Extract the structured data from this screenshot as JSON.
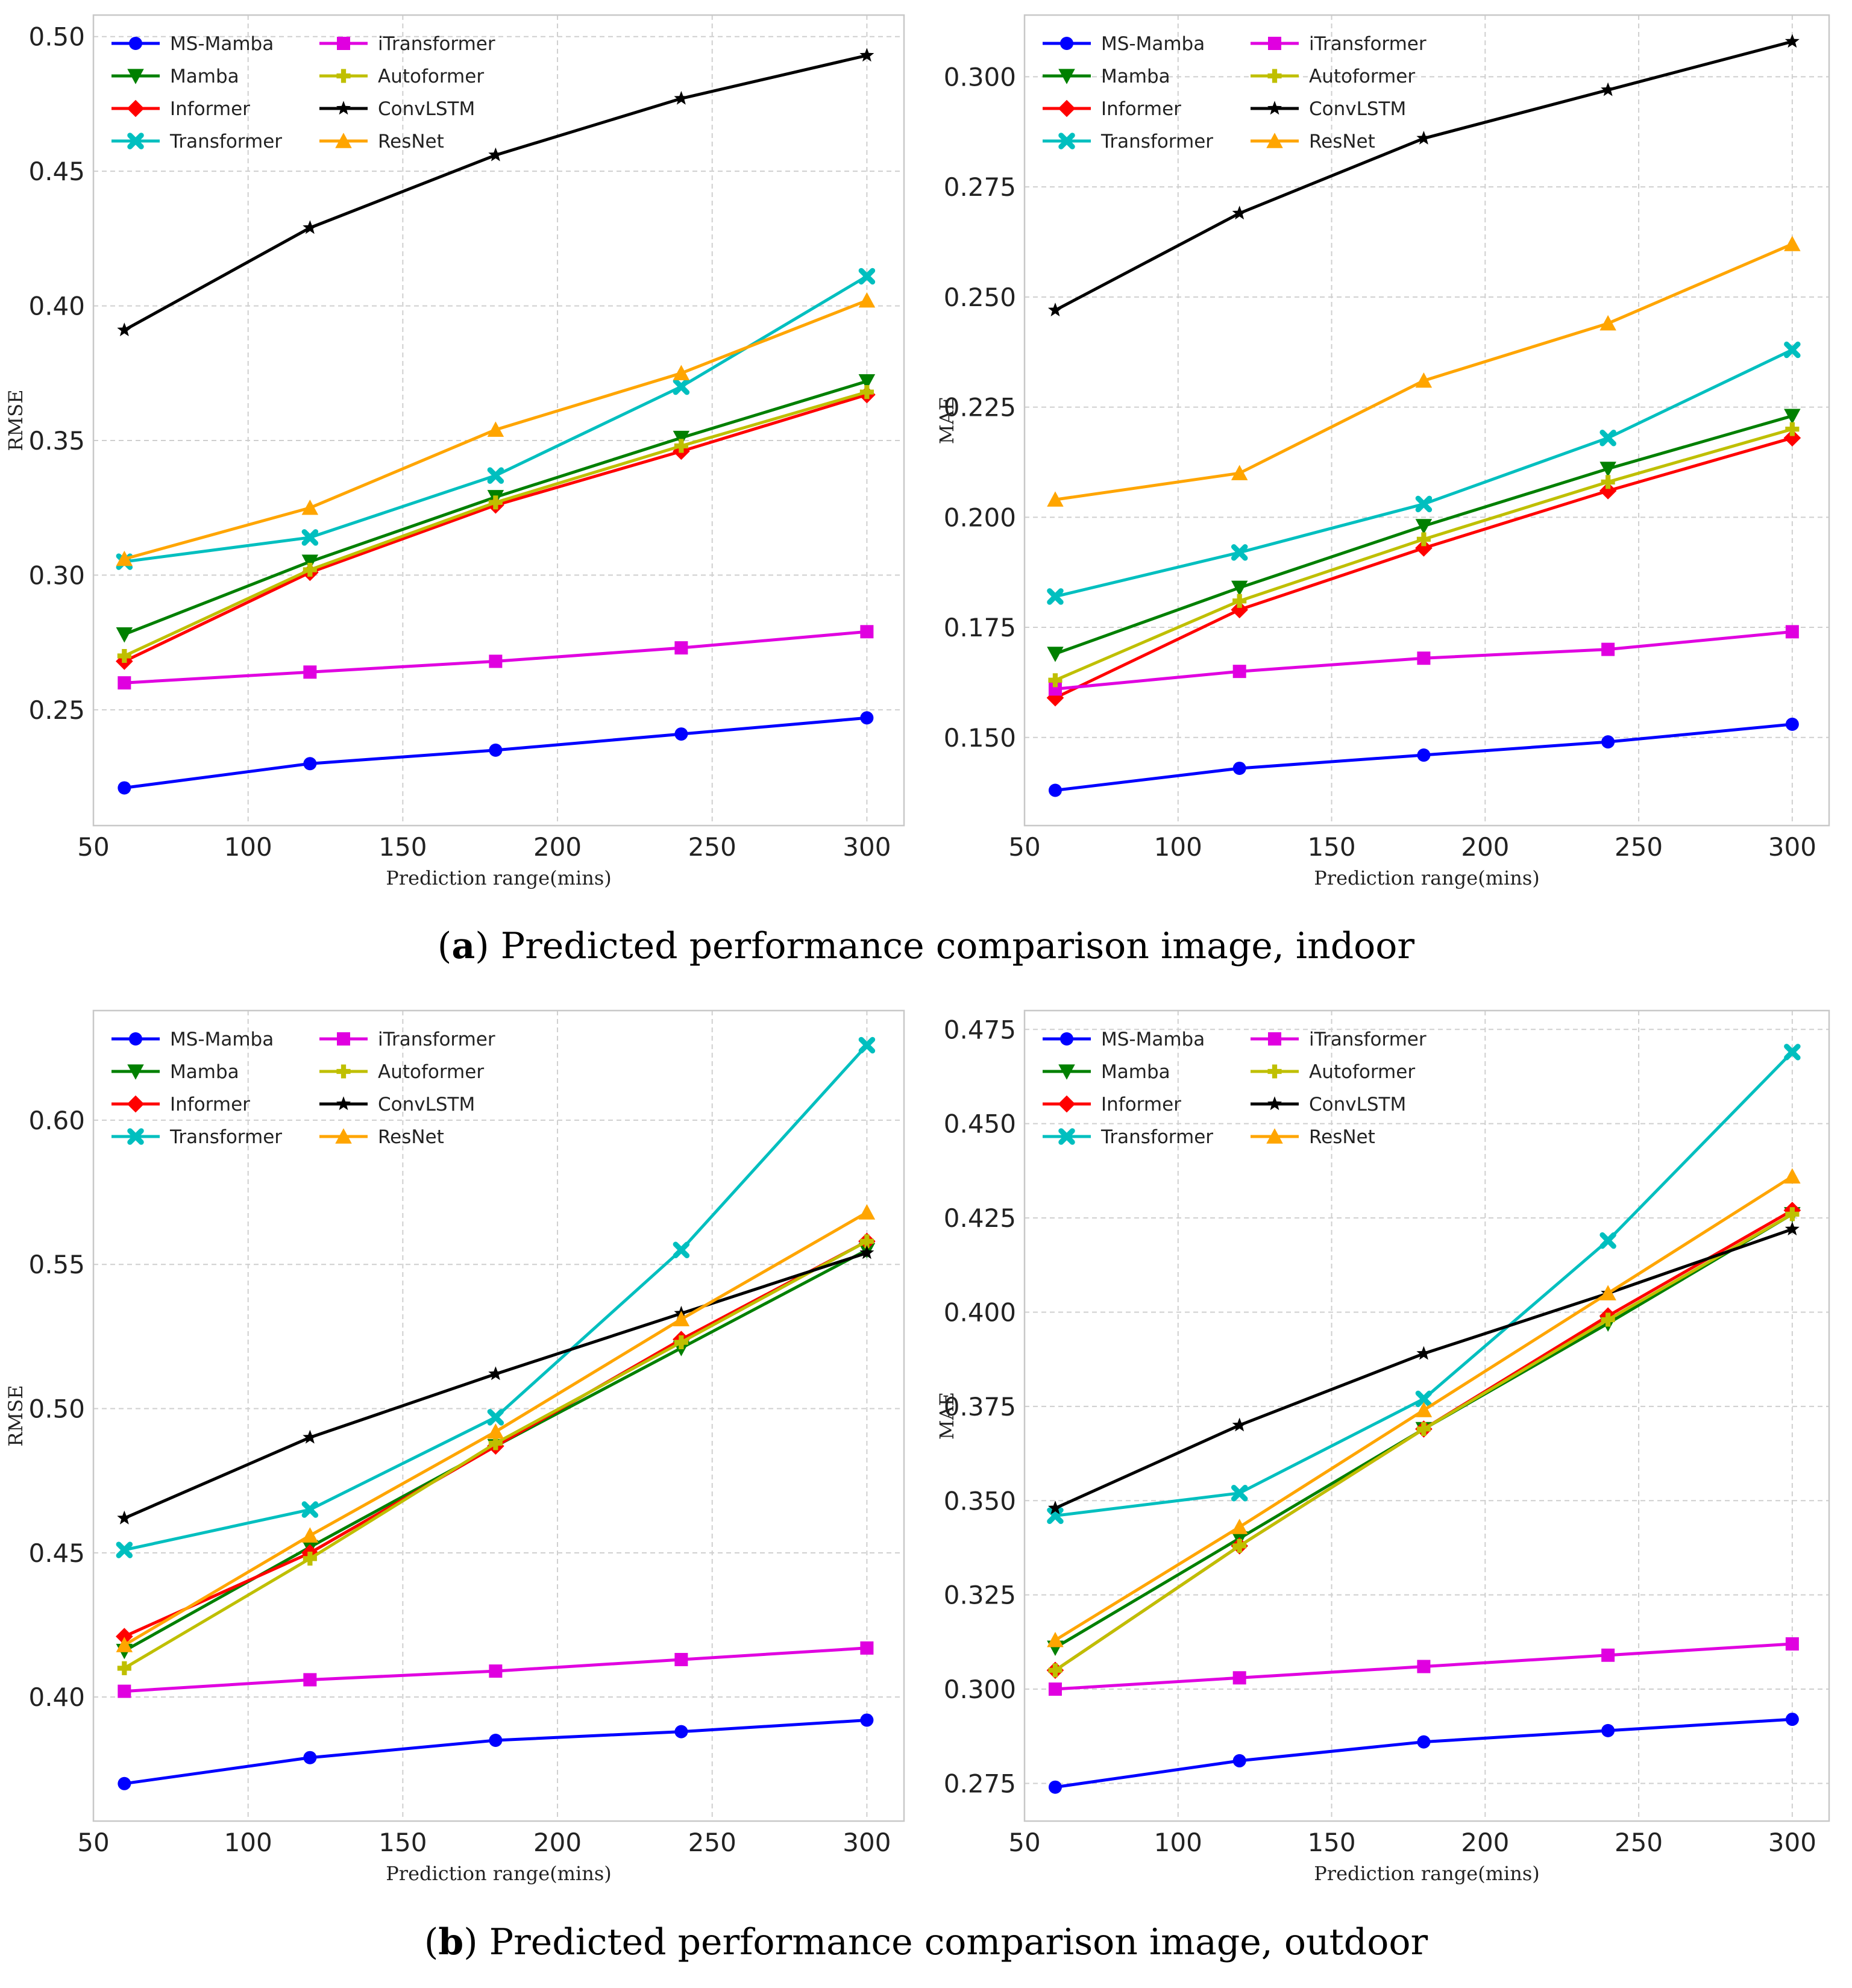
{
  "captions": [
    {
      "letter": "a",
      "text": " Predicted performance comparison image, indoor"
    },
    {
      "letter": "b",
      "text": " Predicted performance comparison image, outdoor"
    }
  ],
  "legend_names": [
    "MS-Mamba",
    "Mamba",
    "Informer",
    "Transformer",
    "iTransformer",
    "Autoformer",
    "ConvLSTM",
    "ResNet"
  ],
  "series_styles": {
    "MS-Mamba": {
      "color": "#0000ff",
      "marker": "circle"
    },
    "Mamba": {
      "color": "#008000",
      "marker": "triangle-down"
    },
    "Informer": {
      "color": "#ff0000",
      "marker": "diamond"
    },
    "Transformer": {
      "color": "#00bfbf",
      "marker": "x"
    },
    "iTransformer": {
      "color": "#e000e0",
      "marker": "square"
    },
    "Autoformer": {
      "color": "#bfbf00",
      "marker": "plus"
    },
    "ConvLSTM": {
      "color": "#000000",
      "marker": "star"
    },
    "ResNet": {
      "color": "#ffa500",
      "marker": "triangle-up"
    }
  },
  "chart_data": [
    {
      "type": "line",
      "title": "",
      "xlabel": "Prediction range(mins)",
      "ylabel": "RMSE",
      "xlim": [
        50,
        312
      ],
      "ylim": [
        0.207,
        0.508
      ],
      "xticks": [
        "50",
        "100",
        "150",
        "200",
        "250",
        "300"
      ],
      "yticks": [
        "0.25",
        "0.30",
        "0.35",
        "0.40",
        "0.45",
        "0.50"
      ],
      "x": [
        60,
        120,
        180,
        240,
        300
      ],
      "series": [
        {
          "name": "MS-Mamba",
          "values": [
            0.221,
            0.23,
            0.235,
            0.241,
            0.247
          ]
        },
        {
          "name": "Mamba",
          "values": [
            0.278,
            0.305,
            0.329,
            0.351,
            0.372
          ]
        },
        {
          "name": "Informer",
          "values": [
            0.268,
            0.301,
            0.326,
            0.346,
            0.367
          ]
        },
        {
          "name": "Transformer",
          "values": [
            0.305,
            0.314,
            0.337,
            0.37,
            0.411
          ]
        },
        {
          "name": "iTransformer",
          "values": [
            0.26,
            0.264,
            0.268,
            0.273,
            0.279
          ]
        },
        {
          "name": "Autoformer",
          "values": [
            0.27,
            0.302,
            0.327,
            0.348,
            0.368
          ]
        },
        {
          "name": "ConvLSTM",
          "values": [
            0.391,
            0.429,
            0.456,
            0.477,
            0.493
          ]
        },
        {
          "name": "ResNet",
          "values": [
            0.306,
            0.325,
            0.354,
            0.375,
            0.402
          ]
        }
      ]
    },
    {
      "type": "line",
      "title": "",
      "xlabel": "Prediction range(mins)",
      "ylabel": "MAE",
      "xlim": [
        50,
        312
      ],
      "ylim": [
        0.13,
        0.314
      ],
      "xticks": [
        "50",
        "100",
        "150",
        "200",
        "250",
        "300"
      ],
      "yticks": [
        "0.150",
        "0.175",
        "0.200",
        "0.225",
        "0.250",
        "0.275",
        "0.300"
      ],
      "x": [
        60,
        120,
        180,
        240,
        300
      ],
      "series": [
        {
          "name": "MS-Mamba",
          "values": [
            0.138,
            0.143,
            0.146,
            0.149,
            0.153
          ]
        },
        {
          "name": "Mamba",
          "values": [
            0.169,
            0.184,
            0.198,
            0.211,
            0.223
          ]
        },
        {
          "name": "Informer",
          "values": [
            0.159,
            0.179,
            0.193,
            0.206,
            0.218
          ]
        },
        {
          "name": "Transformer",
          "values": [
            0.182,
            0.192,
            0.203,
            0.218,
            0.238
          ]
        },
        {
          "name": "iTransformer",
          "values": [
            0.161,
            0.165,
            0.168,
            0.17,
            0.174
          ]
        },
        {
          "name": "Autoformer",
          "values": [
            0.163,
            0.181,
            0.195,
            0.208,
            0.22
          ]
        },
        {
          "name": "ConvLSTM",
          "values": [
            0.247,
            0.269,
            0.286,
            0.297,
            0.308
          ]
        },
        {
          "name": "ResNet",
          "values": [
            0.204,
            0.21,
            0.231,
            0.244,
            0.262
          ]
        }
      ]
    },
    {
      "type": "line",
      "title": "",
      "xlabel": "Prediction range(mins)",
      "ylabel": "RMSE",
      "xlim": [
        50,
        312
      ],
      "ylim": [
        0.357,
        0.638
      ],
      "xticks": [
        "50",
        "100",
        "150",
        "200",
        "250",
        "300"
      ],
      "yticks": [
        "0.40",
        "0.45",
        "0.50",
        "0.55",
        "0.60"
      ],
      "x": [
        60,
        120,
        180,
        240,
        300
      ],
      "series": [
        {
          "name": "MS-Mamba",
          "values": [
            0.37,
            0.379,
            0.385,
            0.388,
            0.392
          ]
        },
        {
          "name": "Mamba",
          "values": [
            0.416,
            0.452,
            0.487,
            0.521,
            0.555
          ]
        },
        {
          "name": "Informer",
          "values": [
            0.421,
            0.45,
            0.487,
            0.524,
            0.558
          ]
        },
        {
          "name": "Transformer",
          "values": [
            0.451,
            0.465,
            0.497,
            0.555,
            0.626
          ]
        },
        {
          "name": "iTransformer",
          "values": [
            0.402,
            0.406,
            0.409,
            0.413,
            0.417
          ]
        },
        {
          "name": "Autoformer",
          "values": [
            0.41,
            0.448,
            0.488,
            0.523,
            0.558
          ]
        },
        {
          "name": "ConvLSTM",
          "values": [
            0.462,
            0.49,
            0.512,
            0.533,
            0.554
          ]
        },
        {
          "name": "ResNet",
          "values": [
            0.418,
            0.456,
            0.492,
            0.531,
            0.568
          ]
        }
      ]
    },
    {
      "type": "line",
      "title": "",
      "xlabel": "Prediction range(mins)",
      "ylabel": "MAE",
      "xlim": [
        50,
        312
      ],
      "ylim": [
        0.265,
        0.48
      ],
      "xticks": [
        "50",
        "100",
        "150",
        "200",
        "250",
        "300"
      ],
      "yticks": [
        "0.275",
        "0.300",
        "0.325",
        "0.350",
        "0.375",
        "0.400",
        "0.425",
        "0.450",
        "0.475"
      ],
      "x": [
        60,
        120,
        180,
        240,
        300
      ],
      "series": [
        {
          "name": "MS-Mamba",
          "values": [
            0.274,
            0.281,
            0.286,
            0.289,
            0.292
          ]
        },
        {
          "name": "Mamba",
          "values": [
            0.311,
            0.34,
            0.369,
            0.397,
            0.426
          ]
        },
        {
          "name": "Informer",
          "values": [
            0.305,
            0.338,
            0.369,
            0.399,
            0.427
          ]
        },
        {
          "name": "Transformer",
          "values": [
            0.346,
            0.352,
            0.377,
            0.419,
            0.469
          ]
        },
        {
          "name": "iTransformer",
          "values": [
            0.3,
            0.303,
            0.306,
            0.309,
            0.312
          ]
        },
        {
          "name": "Autoformer",
          "values": [
            0.305,
            0.338,
            0.369,
            0.398,
            0.426
          ]
        },
        {
          "name": "ConvLSTM",
          "values": [
            0.348,
            0.37,
            0.389,
            0.405,
            0.422
          ]
        },
        {
          "name": "ResNet",
          "values": [
            0.313,
            0.343,
            0.374,
            0.405,
            0.436
          ]
        }
      ]
    }
  ]
}
